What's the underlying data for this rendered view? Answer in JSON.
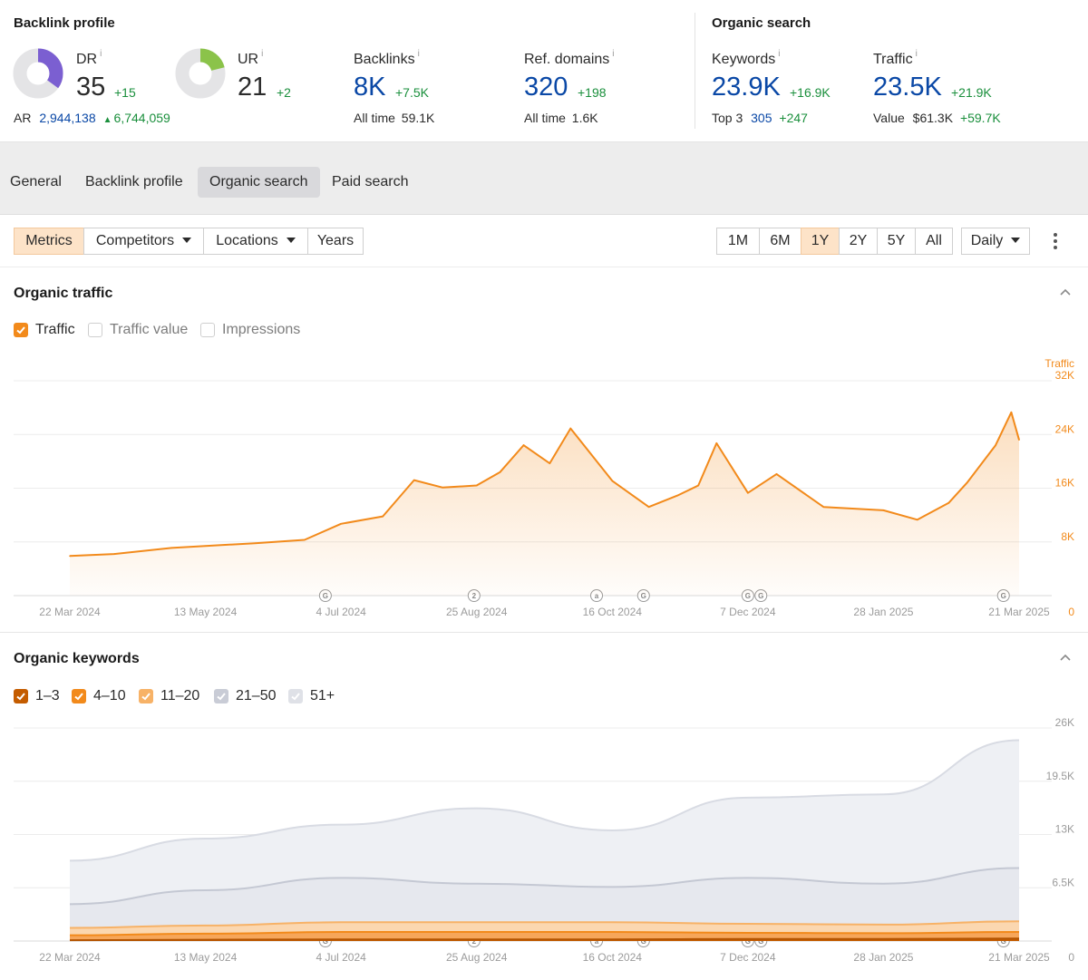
{
  "backlink_profile": {
    "title": "Backlink profile",
    "dr": {
      "label": "DR",
      "info": "i",
      "value": "35",
      "delta": "+15",
      "fill": 0.35,
      "color": "#7b5fd1"
    },
    "ur": {
      "label": "UR",
      "info": "i",
      "value": "21",
      "delta": "+2",
      "fill": 0.21,
      "color": "#8bc34a"
    },
    "ar": {
      "label": "AR",
      "value": "2,944,138",
      "delta": "6,744,059"
    },
    "backlinks": {
      "label": "Backlinks",
      "info": "i",
      "value": "8K",
      "delta": "+7.5K",
      "sub_label": "All time",
      "sub_value": "59.1K"
    },
    "ref_domains": {
      "label": "Ref. domains",
      "info": "i",
      "value": "320",
      "delta": "+198",
      "sub_label": "All time",
      "sub_value": "1.6K"
    }
  },
  "organic_search": {
    "title": "Organic search",
    "keywords": {
      "label": "Keywords",
      "info": "i",
      "value": "23.9K",
      "delta": "+16.9K",
      "sub_label": "Top 3",
      "sub_value": "305",
      "sub_delta": "+247"
    },
    "traffic": {
      "label": "Traffic",
      "info": "i",
      "value": "23.5K",
      "delta": "+21.9K",
      "sub_label": "Value",
      "sub_value": "$61.3K",
      "sub_delta": "+59.7K"
    }
  },
  "tabs": [
    "General",
    "Backlink profile",
    "Organic search",
    "Paid search"
  ],
  "toolbar": {
    "metrics": "Metrics",
    "competitors": "Competitors",
    "locations": "Locations",
    "years": "Years",
    "ranges": [
      "1M",
      "6M",
      "1Y",
      "2Y",
      "5Y",
      "All"
    ],
    "active_range": "1Y",
    "interval": "Daily"
  },
  "organic_traffic": {
    "title": "Organic traffic",
    "legend": [
      {
        "label": "Traffic",
        "checked": true,
        "color": "#f28a1b"
      },
      {
        "label": "Traffic value",
        "checked": false
      },
      {
        "label": "Impressions",
        "checked": false
      }
    ]
  },
  "organic_keywords": {
    "title": "Organic keywords",
    "legend": [
      {
        "label": "1–3",
        "color": "#c45c00"
      },
      {
        "label": "4–10",
        "color": "#f28a1b"
      },
      {
        "label": "11–20",
        "color": "#f7b267"
      },
      {
        "label": "21–50",
        "color": "#c9ccd6"
      },
      {
        "label": "51+",
        "color": "#dfe1e7"
      }
    ]
  },
  "chart_data": [
    {
      "type": "area",
      "title": "Organic traffic",
      "series_name": "Traffic",
      "axis_label": "Traffic",
      "x_ticks": [
        "22 Mar 2024",
        "13 May 2024",
        "4 Jul 2024",
        "25 Aug 2024",
        "16 Oct 2024",
        "7 Dec 2024",
        "28 Jan 2025",
        "21 Mar 2025"
      ],
      "y_ticks": [
        "0",
        "8K",
        "16K",
        "24K",
        "32K"
      ],
      "ylim": [
        0,
        32000
      ],
      "x": [
        "22 Mar 2024",
        "8 Apr 2024",
        "30 Apr 2024",
        "13 May 2024",
        "1 Jun 2024",
        "20 Jun 2024",
        "4 Jul 2024",
        "20 Jul 2024",
        "1 Aug 2024",
        "12 Aug 2024",
        "25 Aug 2024",
        "3 Sep 2024",
        "12 Sep 2024",
        "22 Sep 2024",
        "30 Sep 2024",
        "16 Oct 2024",
        "30 Oct 2024",
        "10 Nov 2024",
        "18 Nov 2024",
        "25 Nov 2024",
        "7 Dec 2024",
        "18 Dec 2024",
        "5 Jan 2025",
        "28 Jan 2025",
        "10 Feb 2025",
        "22 Feb 2025",
        "1 Mar 2025",
        "12 Mar 2025",
        "18 Mar 2025",
        "21 Mar 2025"
      ],
      "values": [
        5900,
        6200,
        7100,
        7400,
        7800,
        8300,
        10700,
        11800,
        17200,
        16100,
        16400,
        18400,
        22400,
        19700,
        24900,
        17100,
        13200,
        14900,
        16400,
        22700,
        15300,
        18100,
        13200,
        12700,
        11300,
        13800,
        16800,
        22400,
        27300,
        23200
      ],
      "markers": [
        {
          "x": "28 Jun 2024",
          "label": "G"
        },
        {
          "x": "24 Aug 2024",
          "label": "2"
        },
        {
          "x": "10 Oct 2024",
          "label": "a"
        },
        {
          "x": "28 Oct 2024",
          "label": "G"
        },
        {
          "x": "7 Dec 2024",
          "label": "G"
        },
        {
          "x": "12 Dec 2024",
          "label": "G"
        },
        {
          "x": "15 Mar 2025",
          "label": "G"
        }
      ]
    },
    {
      "type": "area",
      "title": "Organic keywords",
      "x_ticks": [
        "22 Mar 2024",
        "13 May 2024",
        "4 Jul 2024",
        "25 Aug 2024",
        "16 Oct 2024",
        "7 Dec 2024",
        "28 Jan 2025",
        "21 Mar 2025"
      ],
      "y_ticks": [
        "0",
        "6.5K",
        "13K",
        "19.5K",
        "26K"
      ],
      "ylim": [
        0,
        26000
      ],
      "x": [
        "22 Mar 2024",
        "13 May 2024",
        "4 Jul 2024",
        "25 Aug 2024",
        "16 Oct 2024",
        "7 Dec 2024",
        "28 Jan 2025",
        "21 Mar 2025"
      ],
      "series": [
        {
          "name": "51+",
          "values": [
            9800,
            12500,
            14200,
            16200,
            13500,
            17500,
            17900,
            24500
          ]
        },
        {
          "name": "21–50",
          "values": [
            4500,
            6200,
            7700,
            7000,
            6600,
            7700,
            7000,
            8900
          ]
        },
        {
          "name": "11–20",
          "values": [
            1600,
            1900,
            2300,
            2300,
            2300,
            2100,
            2000,
            2400
          ]
        },
        {
          "name": "4–10",
          "values": [
            700,
            900,
            1100,
            1100,
            1100,
            1000,
            950,
            1100
          ]
        },
        {
          "name": "1–3",
          "values": [
            100,
            150,
            200,
            200,
            200,
            250,
            250,
            300
          ]
        }
      ],
      "markers": [
        {
          "x": "28 Jun 2024",
          "label": "G"
        },
        {
          "x": "24 Aug 2024",
          "label": "2"
        },
        {
          "x": "10 Oct 2024",
          "label": "a"
        },
        {
          "x": "28 Oct 2024",
          "label": "G"
        },
        {
          "x": "7 Dec 2024",
          "label": "G"
        },
        {
          "x": "12 Dec 2024",
          "label": "G"
        },
        {
          "x": "15 Mar 2025",
          "label": "G"
        }
      ]
    }
  ]
}
